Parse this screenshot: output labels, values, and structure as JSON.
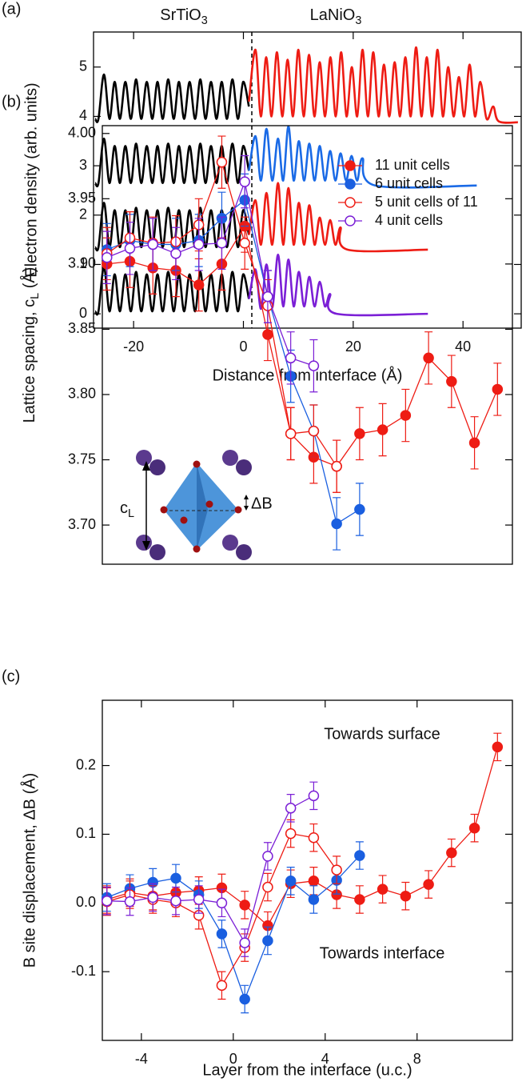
{
  "chart_data": [
    {
      "type": "line",
      "panel_label": "(a)",
      "xlabel": "Distance from interface (Å)",
      "ylabel": "Electron density (arb. units)",
      "region_labels": [
        [
          "SrTiO",
          "3"
        ],
        [
          "LaNiO",
          "3"
        ]
      ],
      "xlim": [
        -27.3,
        50.6
      ],
      "ylim": [
        -0.29,
        5.71
      ],
      "xticks": [
        -20,
        0,
        20,
        40
      ],
      "yticks": [
        0,
        1,
        2,
        3,
        4,
        5
      ],
      "series": [
        {
          "color": "#000000",
          "x": [
            -27,
            -26.4,
            -25.4,
            -24.4,
            -23.45,
            -22.5,
            -21.5,
            -20.5,
            -19.55,
            -18.6,
            -17.6,
            -16.6,
            -15.65,
            -14.7,
            -13.7,
            -12.7,
            -11.75,
            -10.8,
            -9.8,
            -8.8,
            -7.85,
            -6.9,
            -5.9,
            -4.9,
            -3.95,
            -3.0,
            -2.0,
            -1.0,
            -0.05,
            1.0
          ],
          "values": [
            0.05,
            0.05,
            0.95,
            0.05,
            0.8,
            0.05,
            0.8,
            0.05,
            0.85,
            0.05,
            0.8,
            0.05,
            0.8,
            0.05,
            0.85,
            0.05,
            0.8,
            0.05,
            0.8,
            0.05,
            0.85,
            0.05,
            0.8,
            0.05,
            0.8,
            0.05,
            0.85,
            0.05,
            0.8,
            0.3
          ]
        },
        {
          "color": "#000000",
          "x": [
            -27,
            -26.4,
            -25.4,
            -24.4,
            -23.45,
            -22.5,
            -21.5,
            -20.5,
            -19.55,
            -18.6,
            -17.6,
            -16.6,
            -15.65,
            -14.7,
            -13.7,
            -12.7,
            -11.75,
            -10.8,
            -9.8,
            -8.8,
            -7.85,
            -6.9,
            -5.9,
            -4.9,
            -3.95,
            -3.0,
            -2.0,
            -1.0,
            -0.05,
            1.0
          ],
          "values": [
            1.35,
            1.35,
            2.25,
            1.35,
            2.1,
            1.35,
            2.1,
            1.35,
            2.15,
            1.35,
            2.1,
            1.35,
            2.1,
            1.35,
            2.15,
            1.35,
            2.1,
            1.35,
            2.1,
            1.35,
            2.15,
            1.35,
            2.1,
            1.35,
            2.1,
            1.35,
            2.15,
            1.35,
            2.1,
            1.6
          ]
        },
        {
          "color": "#000000",
          "x": [
            -27,
            -26.4,
            -25.4,
            -24.4,
            -23.45,
            -22.5,
            -21.5,
            -20.5,
            -19.55,
            -18.6,
            -17.6,
            -16.6,
            -15.65,
            -14.7,
            -13.7,
            -12.7,
            -11.75,
            -10.8,
            -9.8,
            -8.8,
            -7.85,
            -6.9,
            -5.9,
            -4.9,
            -3.95,
            -3.0,
            -2.0,
            -1.0,
            -0.05,
            1.0
          ],
          "values": [
            2.65,
            2.65,
            3.55,
            2.65,
            3.4,
            2.65,
            3.4,
            2.65,
            3.45,
            2.65,
            3.4,
            2.65,
            3.4,
            2.65,
            3.45,
            2.65,
            3.4,
            2.65,
            3.4,
            2.65,
            3.45,
            2.65,
            3.4,
            2.65,
            3.4,
            2.65,
            3.45,
            2.65,
            3.4,
            2.9
          ]
        },
        {
          "color": "#000000",
          "x": [
            -27,
            -26.4,
            -25.4,
            -24.4,
            -23.45,
            -22.5,
            -21.5,
            -20.5,
            -19.55,
            -18.6,
            -17.6,
            -16.6,
            -15.65,
            -14.7,
            -13.7,
            -12.7,
            -11.75,
            -10.8,
            -9.8,
            -8.8,
            -7.85,
            -6.9,
            -5.9,
            -4.9,
            -3.95,
            -3.0,
            -2.0,
            -1.0,
            -0.05,
            1.0
          ],
          "values": [
            3.95,
            3.95,
            4.85,
            3.95,
            4.7,
            3.95,
            4.7,
            3.95,
            4.75,
            3.95,
            4.7,
            3.95,
            4.7,
            3.95,
            4.75,
            3.95,
            4.7,
            3.95,
            4.7,
            3.95,
            4.75,
            3.95,
            4.7,
            3.95,
            4.7,
            3.95,
            4.75,
            3.95,
            4.7,
            4.2
          ]
        },
        {
          "color": "#7b1fd6",
          "x": [
            1,
            2.2,
            3.2,
            4.2,
            5.25,
            6.3,
            7.25,
            8.2,
            9.15,
            10.1,
            11.05,
            12.0,
            12.95,
            13.9,
            14.85,
            15.8,
            17,
            33.6
          ],
          "values": [
            0.3,
            0.9,
            0.1,
            1.0,
            0.12,
            1.2,
            0.15,
            1.1,
            0.15,
            0.85,
            0.15,
            0.75,
            0.15,
            0.65,
            0.15,
            0.4,
            0.0,
            0.0
          ]
        },
        {
          "color": "#ee1c14",
          "x": [
            1,
            2.2,
            3.2,
            4.2,
            5.25,
            6.3,
            7.25,
            8.2,
            9.15,
            10.1,
            11.05,
            12.0,
            12.95,
            13.9,
            14.85,
            15.8,
            16.75,
            17.7,
            19,
            33.6
          ],
          "values": [
            1.6,
            2.3,
            1.4,
            2.45,
            1.4,
            2.65,
            1.4,
            2.55,
            1.4,
            2.25,
            1.4,
            2.2,
            1.4,
            1.95,
            1.4,
            1.9,
            1.4,
            1.75,
            1.3,
            1.3
          ]
        },
        {
          "color": "#1a6ae6",
          "x": [
            1,
            2.2,
            3.2,
            4.2,
            5.25,
            6.3,
            7.25,
            8.2,
            9.15,
            10.1,
            11.05,
            12.0,
            12.95,
            13.9,
            14.85,
            15.8,
            16.75,
            17.7,
            18.7,
            19.7,
            20.7,
            21.7,
            24,
            42.5
          ],
          "values": [
            2.9,
            3.6,
            2.7,
            3.75,
            2.7,
            3.55,
            2.7,
            3.8,
            2.7,
            3.5,
            2.7,
            3.45,
            2.7,
            3.4,
            2.7,
            3.3,
            2.7,
            3.25,
            2.7,
            3.2,
            2.7,
            3.15,
            2.6,
            2.6
          ]
        },
        {
          "color": "#ee1c14",
          "x": [
            1,
            2.2,
            3.175,
            4.15,
            5.125,
            6.1,
            7.075,
            8.05,
            9.025,
            10.0,
            10.975,
            11.95,
            12.925,
            13.9,
            14.875,
            15.85,
            16.825,
            17.8,
            18.775,
            19.75,
            20.725,
            21.7,
            22.675,
            23.65,
            24.625,
            25.6,
            26.575,
            27.55,
            28.525,
            29.5,
            30.475,
            31.45,
            32.425,
            33.4,
            34.375,
            35.35,
            36.325,
            37.3,
            38.275,
            39.25,
            40.225,
            41.2,
            42.175,
            43.15,
            44.3,
            45.5,
            46.5,
            50
          ],
          "values": [
            4.3,
            5.35,
            4.0,
            5.2,
            4.0,
            5.3,
            4.0,
            5.15,
            4.0,
            5.35,
            4.0,
            5.25,
            4.0,
            5.1,
            4.0,
            5.2,
            4.0,
            5.3,
            4.0,
            5.0,
            4.0,
            5.35,
            4.0,
            5.3,
            4.0,
            5.05,
            4.0,
            5.1,
            4.0,
            5.2,
            4.0,
            5.4,
            4.0,
            5.2,
            4.0,
            5.35,
            4.0,
            5.0,
            4.0,
            4.8,
            4.0,
            5.05,
            4.0,
            4.7,
            3.95,
            4.2,
            3.9,
            3.88
          ]
        }
      ]
    },
    {
      "type": "errorbar",
      "panel_label": "(b)",
      "ylabel": [
        "Lattice spacing, c",
        "L",
        " (Å)"
      ],
      "inset_labels": [
        [
          "c",
          "L"
        ],
        "ΔB"
      ],
      "xlim": [
        -5.7,
        12.15
      ],
      "ylim": [
        3.67,
        4.006
      ],
      "yticks": [
        {
          "value": 3.7,
          "label": "3.70"
        },
        3.75,
        {
          "value": 3.8,
          "label": "3.80"
        },
        3.85,
        {
          "value": 3.9,
          "label": "3.90"
        },
        3.95,
        {
          "value": 4.0,
          "label": "4.00"
        }
      ],
      "legend": "upper right",
      "series": [
        {
          "name": "11 unit cells",
          "color": "#ee1c14",
          "marker": "filled",
          "x": [
            -5.5,
            -4.5,
            -3.5,
            -2.5,
            -1.5,
            -0.5,
            0.5,
            1.5,
            2.5,
            3.5,
            4.5,
            5.5,
            6.5,
            7.5,
            8.5,
            9.5,
            10.5,
            11.5
          ],
          "values": [
            3.9,
            3.902,
            3.897,
            3.895,
            3.884,
            3.9,
            3.929,
            3.846,
            3.77,
            3.752,
            3.745,
            3.77,
            3.773,
            3.784,
            3.828,
            3.81,
            3.763,
            3.804
          ],
          "errors": [
            0.02,
            0.02,
            0.02,
            0.02,
            0.02,
            0.02,
            0.02,
            0.02,
            0.02,
            0.02,
            0.02,
            0.02,
            0.02,
            0.02,
            0.02,
            0.02,
            0.02,
            0.02
          ]
        },
        {
          "name": "6 unit cells",
          "color": "#1a5fe0",
          "marker": "filled",
          "x": [
            -5.5,
            -4.5,
            -3.5,
            -2.5,
            -1.5,
            -0.5,
            0.5,
            1.5,
            2.5,
            3.5,
            4.5,
            5.5
          ],
          "values": [
            3.911,
            3.918,
            3.915,
            3.915,
            3.918,
            3.935,
            3.949,
            3.875,
            3.814,
            3.772,
            3.701,
            3.712
          ],
          "errors": [
            0.02,
            0.02,
            0.02,
            0.02,
            0.02,
            0.02,
            0.02,
            0.02,
            0.02,
            0.02,
            0.02,
            0.02
          ]
        },
        {
          "name": "5 unit cells of 11",
          "color": "#ee1c14",
          "marker": "open",
          "x": [
            -5.5,
            -4.5,
            -3.5,
            -2.5,
            -1.5,
            -0.5,
            0.5,
            1.5,
            2.5,
            3.5,
            4.5
          ],
          "values": [
            3.908,
            3.92,
            3.916,
            3.917,
            3.93,
            3.978,
            3.916,
            3.868,
            3.77,
            3.772,
            3.745
          ],
          "errors": [
            0.02,
            0.02,
            0.02,
            0.02,
            0.02,
            0.02,
            0.02,
            0.02,
            0.02,
            0.02,
            0.02
          ]
        },
        {
          "name": "4 unit cells",
          "color": "#7b1fd6",
          "marker": "open",
          "x": [
            -5.5,
            -4.5,
            -3.5,
            -2.5,
            -1.5,
            -0.5,
            0.5,
            1.5,
            2.5,
            3.5
          ],
          "values": [
            3.905,
            3.912,
            3.915,
            3.908,
            3.915,
            3.916,
            3.963,
            3.875,
            3.828,
            3.822
          ],
          "errors": [
            0.02,
            0.02,
            0.02,
            0.02,
            0.02,
            0.02,
            0.02,
            0.02,
            0.02,
            0.02
          ]
        }
      ]
    },
    {
      "type": "errorbar",
      "panel_label": "(c)",
      "xlabel": "Layer from the interface (u.c.)",
      "ylabel": "B site displacement, ΔB (Å)",
      "annotations": [
        "Towards surface",
        "Towards interface"
      ],
      "xlim": [
        -5.7,
        12.15
      ],
      "ylim": [
        -0.2,
        0.295
      ],
      "xticks": [
        -4,
        0,
        4,
        8
      ],
      "yticks": [
        -0.1,
        {
          "value": 0,
          "label": "0.0"
        },
        0.1,
        0.2
      ],
      "series": [
        {
          "color": "#ee1c14",
          "marker": "filled",
          "x": [
            -5.5,
            -4.5,
            -3.5,
            -2.5,
            -1.5,
            -0.5,
            0.5,
            1.5,
            2.5,
            3.5,
            4.5,
            5.5,
            6.5,
            7.5,
            8.5,
            9.5,
            10.5,
            11.5
          ],
          "values": [
            0.005,
            0.015,
            0.01,
            0.015,
            0.018,
            0.022,
            -0.003,
            -0.033,
            0.028,
            0.032,
            0.012,
            0.005,
            0.02,
            0.01,
            0.027,
            0.073,
            0.109,
            0.227
          ],
          "errors": [
            0.02,
            0.02,
            0.02,
            0.02,
            0.02,
            0.02,
            0.02,
            0.02,
            0.02,
            0.02,
            0.02,
            0.02,
            0.02,
            0.02,
            0.02,
            0.02,
            0.02,
            0.02
          ]
        },
        {
          "color": "#1a5fe0",
          "marker": "filled",
          "x": [
            -5.5,
            -4.5,
            -3.5,
            -2.5,
            -1.5,
            -0.5,
            0.5,
            1.5,
            2.5,
            3.5,
            4.5,
            5.5
          ],
          "values": [
            0.008,
            0.021,
            0.03,
            0.036,
            0.012,
            -0.045,
            -0.14,
            -0.055,
            0.032,
            0.005,
            0.033,
            0.069
          ],
          "errors": [
            0.02,
            0.02,
            0.02,
            0.02,
            0.02,
            0.02,
            0.02,
            0.02,
            0.02,
            0.02,
            0.02,
            0.02
          ]
        },
        {
          "color": "#ee1c14",
          "marker": "open",
          "x": [
            -5.5,
            -4.5,
            -3.5,
            -2.5,
            -1.5,
            -0.5,
            0.5,
            1.5,
            2.5,
            3.5,
            4.5
          ],
          "values": [
            0.002,
            0.012,
            0.005,
            0.0,
            -0.018,
            -0.12,
            -0.065,
            0.023,
            0.101,
            0.095,
            0.048
          ],
          "errors": [
            0.02,
            0.02,
            0.02,
            0.02,
            0.02,
            0.02,
            0.02,
            0.02,
            0.02,
            0.02,
            0.02
          ]
        },
        {
          "color": "#7b1fd6",
          "marker": "open",
          "x": [
            -5.5,
            -4.5,
            -3.5,
            -2.5,
            -1.5,
            -0.5,
            0.5,
            1.5,
            2.5,
            3.5
          ],
          "values": [
            0.003,
            0.002,
            0.008,
            0.003,
            0.005,
            0.0,
            -0.058,
            0.068,
            0.138,
            0.156
          ],
          "errors": [
            0.02,
            0.02,
            0.02,
            0.02,
            0.02,
            0.02,
            0.02,
            0.02,
            0.02,
            0.02
          ]
        }
      ]
    }
  ]
}
